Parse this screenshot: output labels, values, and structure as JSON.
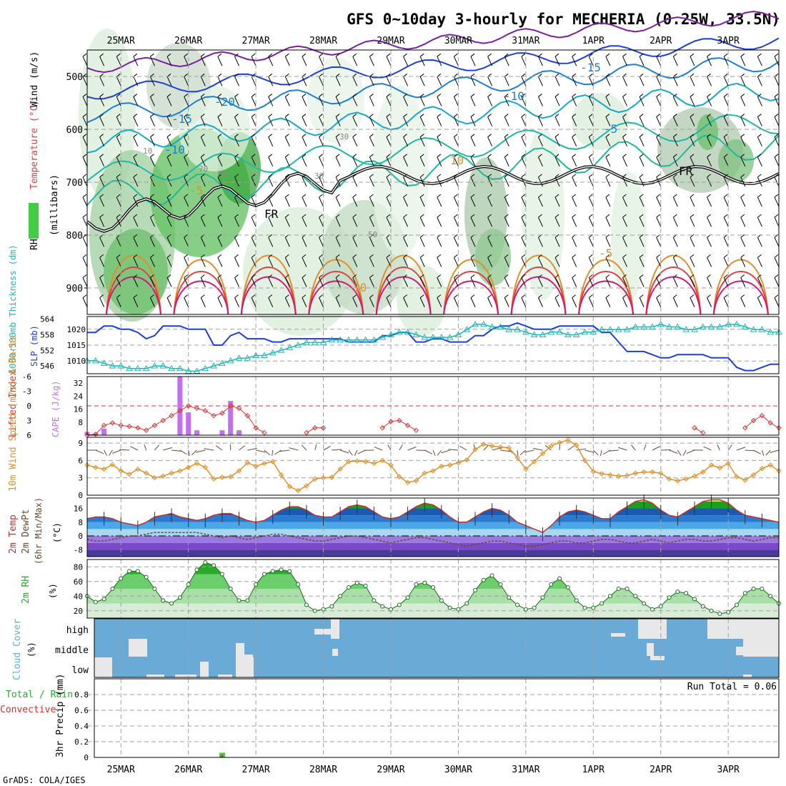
{
  "title": "GFS 0~10day 3-hourly for MECHERIA (0.25W, 33.5N)",
  "credit": "GrADS: COLA/IGES",
  "run_total_label": "Run Total = 0.06",
  "dates": [
    "25MAR",
    "26MAR",
    "27MAR",
    "28MAR",
    "29MAR",
    "30MAR",
    "31MAR",
    "1APR",
    "2APR",
    "3APR"
  ],
  "colors": {
    "frame": "#000000",
    "grid": "#a0a0a0",
    "rh_green": "#44cc44",
    "cloud_blue": "#6aaad6",
    "slp": "#1f3fd6",
    "thickness": "#22b8b8",
    "lifted": "#e03030",
    "cape": "#c070f0",
    "wind_speed": "#e0902a",
    "rh2m": "#2a8a2a"
  },
  "chart_data": [
    {
      "type": "area",
      "panel": "upper-air",
      "labels": {
        "wind": "Wind (m/s)",
        "temp": "Temperature (°C)",
        "rh": "RH (%)",
        "unit": "(millibars)"
      },
      "yticks": [
        500,
        600,
        700,
        800,
        900
      ],
      "ylim": [
        950,
        450
      ],
      "contour_labels": [
        "-20",
        "-15",
        "-15",
        "-10",
        "-10",
        "-5",
        "-5",
        "-5",
        "10",
        "10",
        "FR",
        "FR"
      ],
      "rh_labels": [
        "10",
        "30",
        "50",
        "70",
        "50",
        "30"
      ]
    },
    {
      "type": "line",
      "panel": "slp-thickness",
      "labels": {
        "thickness": "1000-500mb Thickness (dm)",
        "slp": "SLP (mb)"
      },
      "left_ticks": [
        546,
        552,
        558,
        564
      ],
      "right_ticks": [
        1010,
        1015,
        1020
      ],
      "series": [
        {
          "name": "SLP (mb)",
          "values": [
            1019,
            1019,
            1021,
            1021,
            1020,
            1020,
            1019,
            1017,
            1018,
            1021,
            1021,
            1021,
            1020,
            1020,
            1020,
            1015,
            1015,
            1018,
            1019,
            1017,
            1017,
            1017,
            1016,
            1016,
            1017,
            1017,
            1017,
            1017,
            1017,
            1017,
            1017,
            1016,
            1016,
            1016,
            1016,
            1018,
            1018,
            1019,
            1019,
            1016,
            1016,
            1017,
            1017,
            1016,
            1016,
            1016,
            1018,
            1018,
            1020,
            1021,
            1021,
            1022,
            1021,
            1020,
            1020,
            1020,
            1021,
            1021,
            1021,
            1021,
            1021,
            1019,
            1019,
            1016,
            1013,
            1013,
            1013,
            1012,
            1011,
            1011,
            1012,
            1012,
            1012,
            1012,
            1011,
            1011,
            1011,
            1008,
            1007,
            1007,
            1008,
            1009,
            1009
          ]
        },
        {
          "name": "1000-500mb Thickness (dm)",
          "values": [
            548,
            548,
            547,
            546,
            546,
            545,
            545,
            545,
            546,
            546,
            545,
            545,
            544,
            544,
            545,
            546,
            547,
            548,
            549,
            549,
            550,
            550,
            551,
            552,
            553,
            554,
            555,
            555,
            555,
            556,
            556,
            556,
            556,
            556,
            556,
            557,
            558,
            559,
            559,
            558,
            557,
            557,
            557,
            557,
            558,
            560,
            562,
            562,
            561,
            561,
            560,
            560,
            559,
            558,
            558,
            559,
            559,
            558,
            558,
            559,
            559,
            560,
            560,
            560,
            560,
            561,
            561,
            561,
            562,
            561,
            561,
            560,
            560,
            561,
            561,
            561,
            562,
            562,
            561,
            560,
            560,
            559,
            559
          ]
        }
      ]
    },
    {
      "type": "bar",
      "panel": "cape-lifted-index",
      "labels": {
        "cape": "CAPE (J/kg)",
        "lifted": "Lifted Index"
      },
      "cape_ticks": [
        8,
        16,
        24,
        32
      ],
      "lifted_ticks": [
        -6,
        -3,
        0,
        3,
        6
      ],
      "cape_values": [
        {
          "i": 0,
          "v": 2
        },
        {
          "i": 1,
          "v": 1
        },
        {
          "i": 2,
          "v": 4
        },
        {
          "i": 11,
          "v": 36
        },
        {
          "i": 12,
          "v": 14
        },
        {
          "i": 13,
          "v": 3
        },
        {
          "i": 16,
          "v": 3
        },
        {
          "i": 17,
          "v": 21
        },
        {
          "i": 18,
          "v": 3
        }
      ],
      "lifted_segments": [
        {
          "start": 0,
          "values": [
            6,
            5.8,
            4,
            3.5,
            4,
            4.2,
            4.5,
            5,
            4,
            3,
            2,
            1,
            0,
            0.5,
            1,
            2,
            1.5,
            0,
            0.5,
            2,
            4.5,
            5.5
          ]
        },
        {
          "start": 26,
          "values": [
            5.5,
            4.5,
            4.5
          ]
        },
        {
          "start": 35,
          "values": [
            4.5,
            3.2,
            3,
            4,
            5
          ]
        },
        {
          "start": 72,
          "values": [
            4.5,
            5.5
          ]
        },
        {
          "start": 78,
          "values": [
            4.5,
            3,
            2,
            3.5,
            4.5
          ]
        }
      ]
    },
    {
      "type": "line",
      "panel": "10m-wind",
      "labels": {
        "speed": "10m Wind Speed (m/s) & Barbs"
      },
      "yticks": [
        0,
        3,
        6,
        9
      ],
      "series": [
        {
          "name": "10m Wind Speed",
          "values": [
            5.2,
            4.8,
            4.5,
            5.3,
            4.2,
            3.6,
            4.5,
            3.8,
            3,
            3.3,
            3.8,
            4.2,
            4.8,
            5.5,
            4.8,
            2.8,
            3.1,
            3.2,
            4.2,
            5.6,
            5,
            5.5,
            5.8,
            3.5,
            1.5,
            0.8,
            1.6,
            2.8,
            3,
            3.1,
            4.5,
            5.8,
            5.9,
            5.8,
            5.5,
            6,
            5.2,
            3.2,
            2.2,
            2.5,
            3.8,
            4.2,
            5,
            5.2,
            5.6,
            6.1,
            7.9,
            8.8,
            8.5,
            8.3,
            8.2,
            6.5,
            4.5,
            5.8,
            7.2,
            8.5,
            9.1,
            9.5,
            8.6,
            6,
            4.1,
            3.7,
            3.5,
            3.3,
            3.4,
            3.8,
            4,
            4,
            3.8,
            2.8,
            2.5,
            2.8,
            3.3,
            4,
            5.2,
            4.7,
            5.5,
            3.2,
            2.6,
            3.5,
            4.6,
            5.2,
            4.2
          ]
        }
      ]
    },
    {
      "type": "area",
      "panel": "2m-temp",
      "labels": {
        "temp": "2m Temp",
        "dewpt": "2m DewPt",
        "minmax": "(6hr Min/Max)",
        "unit": "(°C)"
      },
      "yticks": [
        -8,
        0,
        8,
        16
      ],
      "series": [
        {
          "name": "2m Temp",
          "values": [
            10,
            11,
            11,
            10,
            8,
            7,
            6,
            8,
            11,
            12,
            13,
            11,
            10,
            9,
            10,
            12,
            13,
            13,
            11,
            9,
            8,
            9,
            12,
            15,
            17,
            17,
            15,
            12,
            11,
            11,
            14,
            17,
            18,
            17,
            14,
            11,
            10,
            11,
            14,
            17,
            19,
            18,
            15,
            11,
            8,
            8,
            11,
            14,
            16,
            15,
            12,
            8,
            6,
            4,
            2,
            6,
            11,
            14,
            15,
            14,
            12,
            10,
            10,
            14,
            17,
            20,
            21,
            19,
            15,
            12,
            11,
            14,
            17,
            20,
            21,
            21,
            19,
            15,
            12,
            11,
            10,
            9,
            8
          ]
        },
        {
          "name": "2m DewPt",
          "values": [
            -2,
            -3,
            -3,
            -2,
            -1,
            0,
            0,
            1,
            2,
            2,
            2,
            2,
            2,
            2,
            1,
            0,
            -1,
            0,
            -1,
            -2,
            -1,
            0,
            1,
            1,
            0,
            -1,
            -2,
            -3,
            -3,
            -2,
            -1,
            0,
            0,
            -1,
            -2,
            -3,
            -4,
            -3,
            -2,
            -1,
            -1,
            -2,
            -3,
            -4,
            -5,
            -6,
            -5,
            -4,
            -3,
            -3,
            -4,
            -5,
            -6,
            -6,
            -5,
            -4,
            -3,
            -3,
            -4,
            -4,
            -3,
            -2,
            -2,
            -3,
            -4,
            -4,
            -3,
            -2,
            -3,
            -4,
            -3,
            -2,
            -2,
            -3,
            -3,
            -2,
            -1,
            -1,
            -2,
            -3,
            -2,
            -1,
            -1
          ]
        }
      ]
    },
    {
      "type": "area",
      "panel": "2m-rh",
      "labels": {
        "rh": "2m RH",
        "unit": "(%)"
      },
      "yticks": [
        20,
        40,
        60,
        80
      ],
      "series": [
        {
          "name": "2m RH",
          "values": [
            40,
            32,
            36,
            50,
            64,
            74,
            74,
            66,
            50,
            34,
            30,
            38,
            56,
            76,
            86,
            82,
            70,
            50,
            34,
            34,
            56,
            70,
            74,
            76,
            74,
            56,
            28,
            20,
            22,
            26,
            40,
            52,
            58,
            54,
            34,
            26,
            22,
            28,
            38,
            56,
            58,
            52,
            34,
            24,
            22,
            30,
            48,
            62,
            68,
            56,
            38,
            28,
            22,
            24,
            38,
            56,
            64,
            52,
            34,
            24,
            24,
            30,
            40,
            50,
            50,
            40,
            30,
            22,
            26,
            38,
            46,
            44,
            36,
            26,
            20,
            16,
            18,
            28,
            44,
            50,
            50,
            40,
            30
          ]
        }
      ]
    },
    {
      "type": "heatmap",
      "panel": "cloud-cover",
      "labels": {
        "cloud": "Cloud Cover",
        "unit": "(%)"
      },
      "levels": [
        "high",
        "middle",
        "low"
      ],
      "background_color": "#6aaad6"
    },
    {
      "type": "bar",
      "panel": "precip",
      "labels": {
        "total_rain": "Total / Rain",
        "convective": "Convective",
        "axis": "3hr Precip (mm)"
      },
      "yticks": [
        0,
        0.2,
        0.4,
        0.6,
        0.8
      ],
      "values": [
        {
          "i": 16,
          "total": 0.06,
          "conv": 0.03
        }
      ]
    }
  ]
}
